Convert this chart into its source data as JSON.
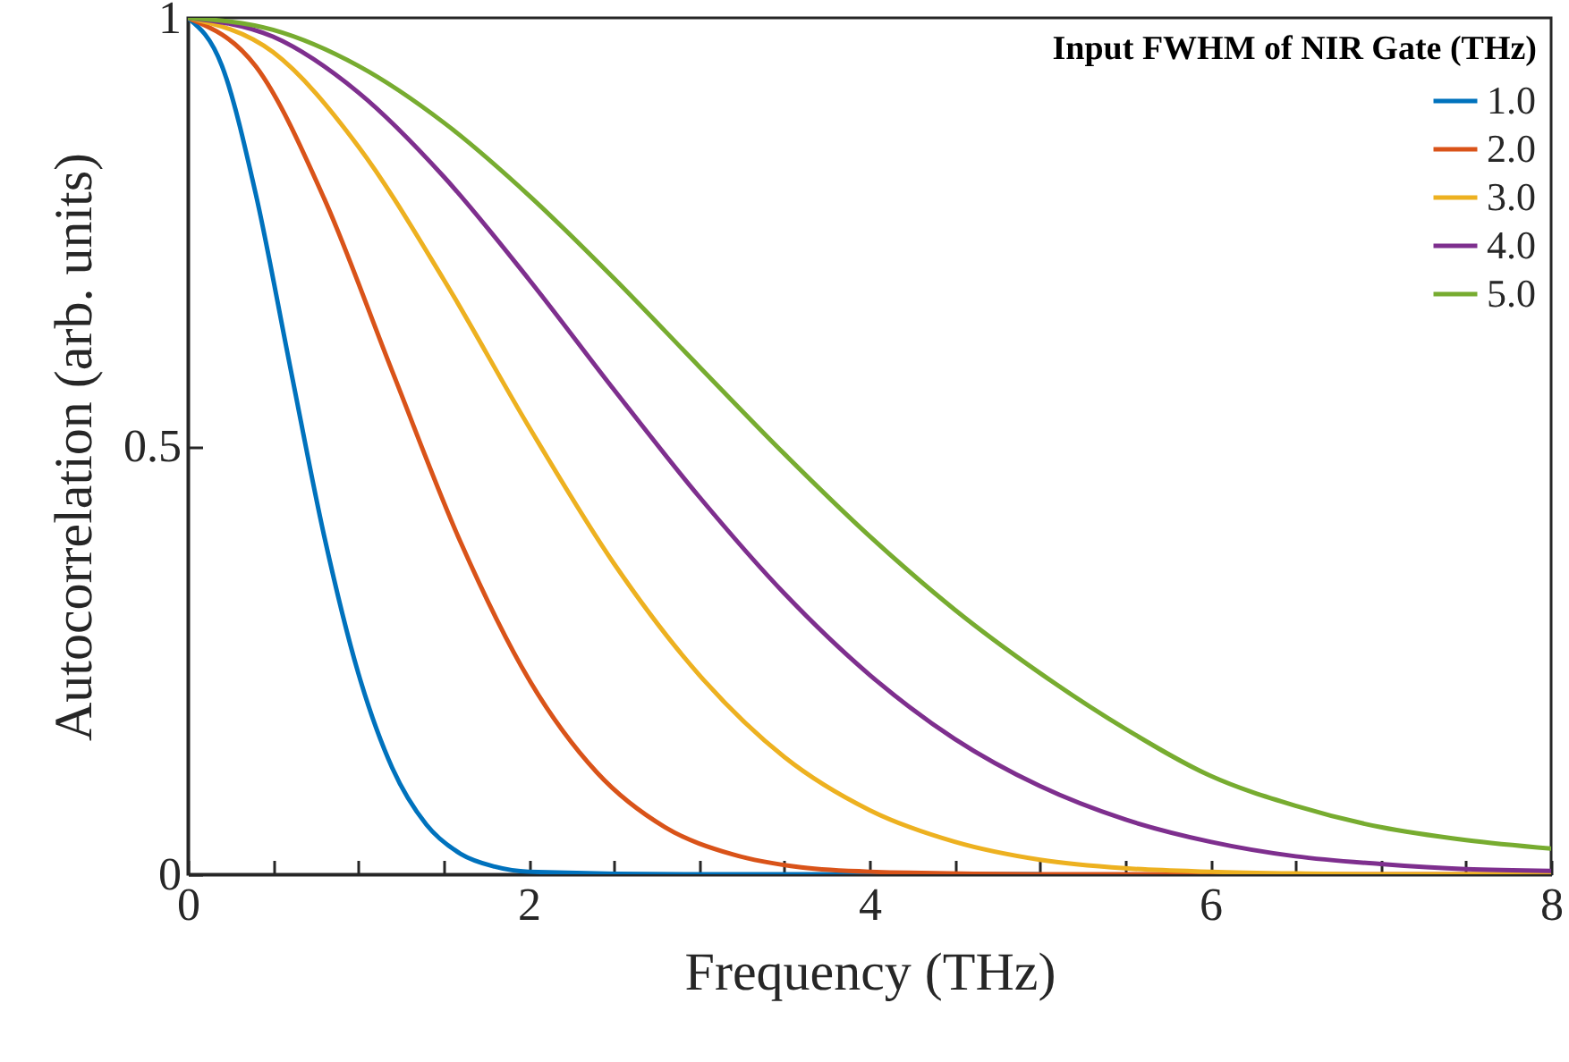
{
  "chart_data": {
    "type": "line",
    "xlabel": "Frequency (THz)",
    "ylabel": "Autocorrelation (arb. units)",
    "legend_title": "Input FWHM of NIR Gate (THz)",
    "legend": "top right",
    "grid": false,
    "xlim": [
      0,
      8
    ],
    "ylim": [
      0,
      1
    ],
    "xticks": [
      0,
      {
        "value": 0.5,
        "label": null
      },
      {
        "value": 1,
        "label": null
      },
      {
        "value": 1.5,
        "label": null
      },
      2,
      {
        "value": 2.5,
        "label": null
      },
      {
        "value": 3,
        "label": null
      },
      {
        "value": 3.5,
        "label": null
      },
      4,
      {
        "value": 4.5,
        "label": null
      },
      {
        "value": 5,
        "label": null
      },
      {
        "value": 5.5,
        "label": null
      },
      6,
      {
        "value": 6.5,
        "label": null
      },
      {
        "value": 7,
        "label": null
      },
      {
        "value": 7.5,
        "label": null
      },
      8
    ],
    "yticks": [
      0,
      0.5,
      1
    ],
    "series": [
      {
        "name": "1.0",
        "color": "#0072bd",
        "x": [
          0,
          0.2,
          0.4,
          0.6,
          0.8,
          1.0,
          1.2,
          1.4,
          1.6,
          1.8,
          2.0,
          3,
          4,
          5
        ],
        "values": [
          1,
          0.944,
          0.793,
          0.593,
          0.395,
          0.235,
          0.124,
          0.058,
          0.024,
          0.009,
          0.003,
          0,
          0,
          0
        ]
      },
      {
        "name": "2.0",
        "color": "#d95319",
        "x": [
          0,
          0.4,
          0.8,
          1.2,
          1.6,
          2.0,
          2.4,
          2.8,
          3.2,
          3.6,
          4,
          5,
          6,
          7,
          8
        ],
        "values": [
          1,
          0.943,
          0.789,
          0.587,
          0.388,
          0.228,
          0.119,
          0.055,
          0.023,
          0.008,
          0.003,
          0,
          0,
          0,
          0
        ]
      },
      {
        "name": "3.0",
        "color": "#edb120",
        "x": [
          0,
          0.5,
          1,
          1.5,
          2,
          2.5,
          3,
          3.5,
          4,
          4.5,
          5,
          5.5,
          6,
          6.5,
          7,
          7.5,
          8
        ],
        "values": [
          1,
          0.96,
          0.85,
          0.695,
          0.523,
          0.363,
          0.233,
          0.137,
          0.075,
          0.038,
          0.017,
          0.007,
          0.003,
          0.001,
          0,
          0,
          0
        ]
      },
      {
        "name": "4.0",
        "color": "#7e2f8e",
        "x": [
          0,
          0.5,
          1,
          1.5,
          2,
          2.5,
          3,
          3.5,
          4,
          4.5,
          5,
          5.5,
          6,
          6.5,
          7,
          7.5,
          8
        ],
        "values": [
          1,
          0.978,
          0.913,
          0.815,
          0.695,
          0.566,
          0.441,
          0.328,
          0.233,
          0.158,
          0.103,
          0.064,
          0.038,
          0.021,
          0.012,
          0.006,
          0.004
        ]
      },
      {
        "name": "5.0",
        "color": "#77ac30",
        "x": [
          0,
          0.5,
          1,
          1.5,
          2,
          2.5,
          3,
          3.5,
          4,
          4.5,
          5,
          5.5,
          6,
          6.5,
          7,
          7.5,
          8
        ],
        "values": [
          1,
          0.986,
          0.944,
          0.878,
          0.793,
          0.696,
          0.593,
          0.491,
          0.395,
          0.309,
          0.235,
          0.17,
          0.115,
          0.08,
          0.055,
          0.04,
          0.03
        ]
      }
    ]
  }
}
